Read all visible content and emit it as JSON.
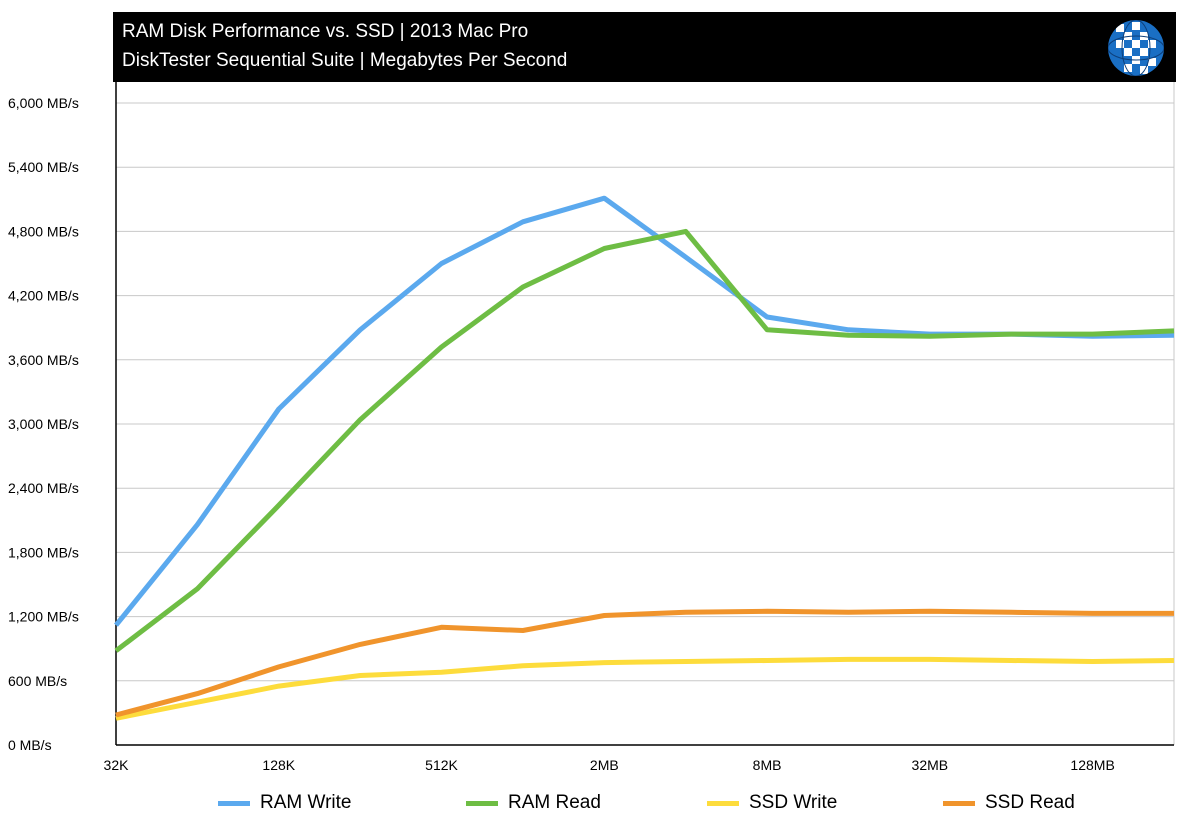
{
  "header": {
    "title": "RAM Disk Performance vs. SSD | 2013 Mac Pro",
    "subtitle": "DiskTester Sequential Suite | Megabytes Per Second",
    "logo_icon": "globe-grid-icon",
    "logo_colors": [
      "#1a6fc4",
      "#ffffff"
    ]
  },
  "chart_data": {
    "type": "line",
    "title": "RAM Disk Performance vs. SSD | 2013 Mac Pro",
    "subtitle": "DiskTester Sequential Suite | Megabytes Per Second",
    "xlabel": "",
    "ylabel": "",
    "ylim": [
      0,
      6000
    ],
    "grid": true,
    "legend_position": "bottom",
    "x": [
      "32K",
      "64K",
      "128K",
      "256K",
      "512K",
      "1MB",
      "2MB",
      "4MB",
      "8MB",
      "16MB",
      "32MB",
      "64MB",
      "128MB",
      "256MB"
    ],
    "x_tick_labels": [
      "32K",
      "128K",
      "512K",
      "2MB",
      "8MB",
      "32MB",
      "128MB"
    ],
    "y_tick_labels": [
      "0 MB/s",
      "600 MB/s",
      "1,200 MB/s",
      "1,800 MB/s",
      "2,400 MB/s",
      "3,000 MB/s",
      "3,600 MB/s",
      "4,200 MB/s",
      "4,800 MB/s",
      "5,400 MB/s",
      "6,000 MB/s"
    ],
    "y_ticks": [
      0,
      600,
      1200,
      1800,
      2400,
      3000,
      3600,
      4200,
      4800,
      5400,
      6000
    ],
    "series": [
      {
        "name": "RAM Write",
        "color": "#5ba9ee",
        "values": [
          1120,
          2060,
          3140,
          3880,
          4500,
          4890,
          5110,
          4560,
          4000,
          3880,
          3840,
          3840,
          3820,
          3830
        ]
      },
      {
        "name": "RAM Read",
        "color": "#6ebd44",
        "values": [
          880,
          1460,
          2240,
          3040,
          3720,
          4280,
          4640,
          4800,
          3880,
          3830,
          3820,
          3840,
          3840,
          3870
        ]
      },
      {
        "name": "SSD Write",
        "color": "#fddc3c",
        "values": [
          250,
          400,
          550,
          650,
          680,
          740,
          770,
          780,
          790,
          800,
          800,
          790,
          780,
          790
        ]
      },
      {
        "name": "SSD Read",
        "color": "#f0942c",
        "values": [
          280,
          480,
          730,
          940,
          1100,
          1070,
          1210,
          1240,
          1250,
          1240,
          1250,
          1240,
          1230,
          1230
        ]
      }
    ]
  }
}
